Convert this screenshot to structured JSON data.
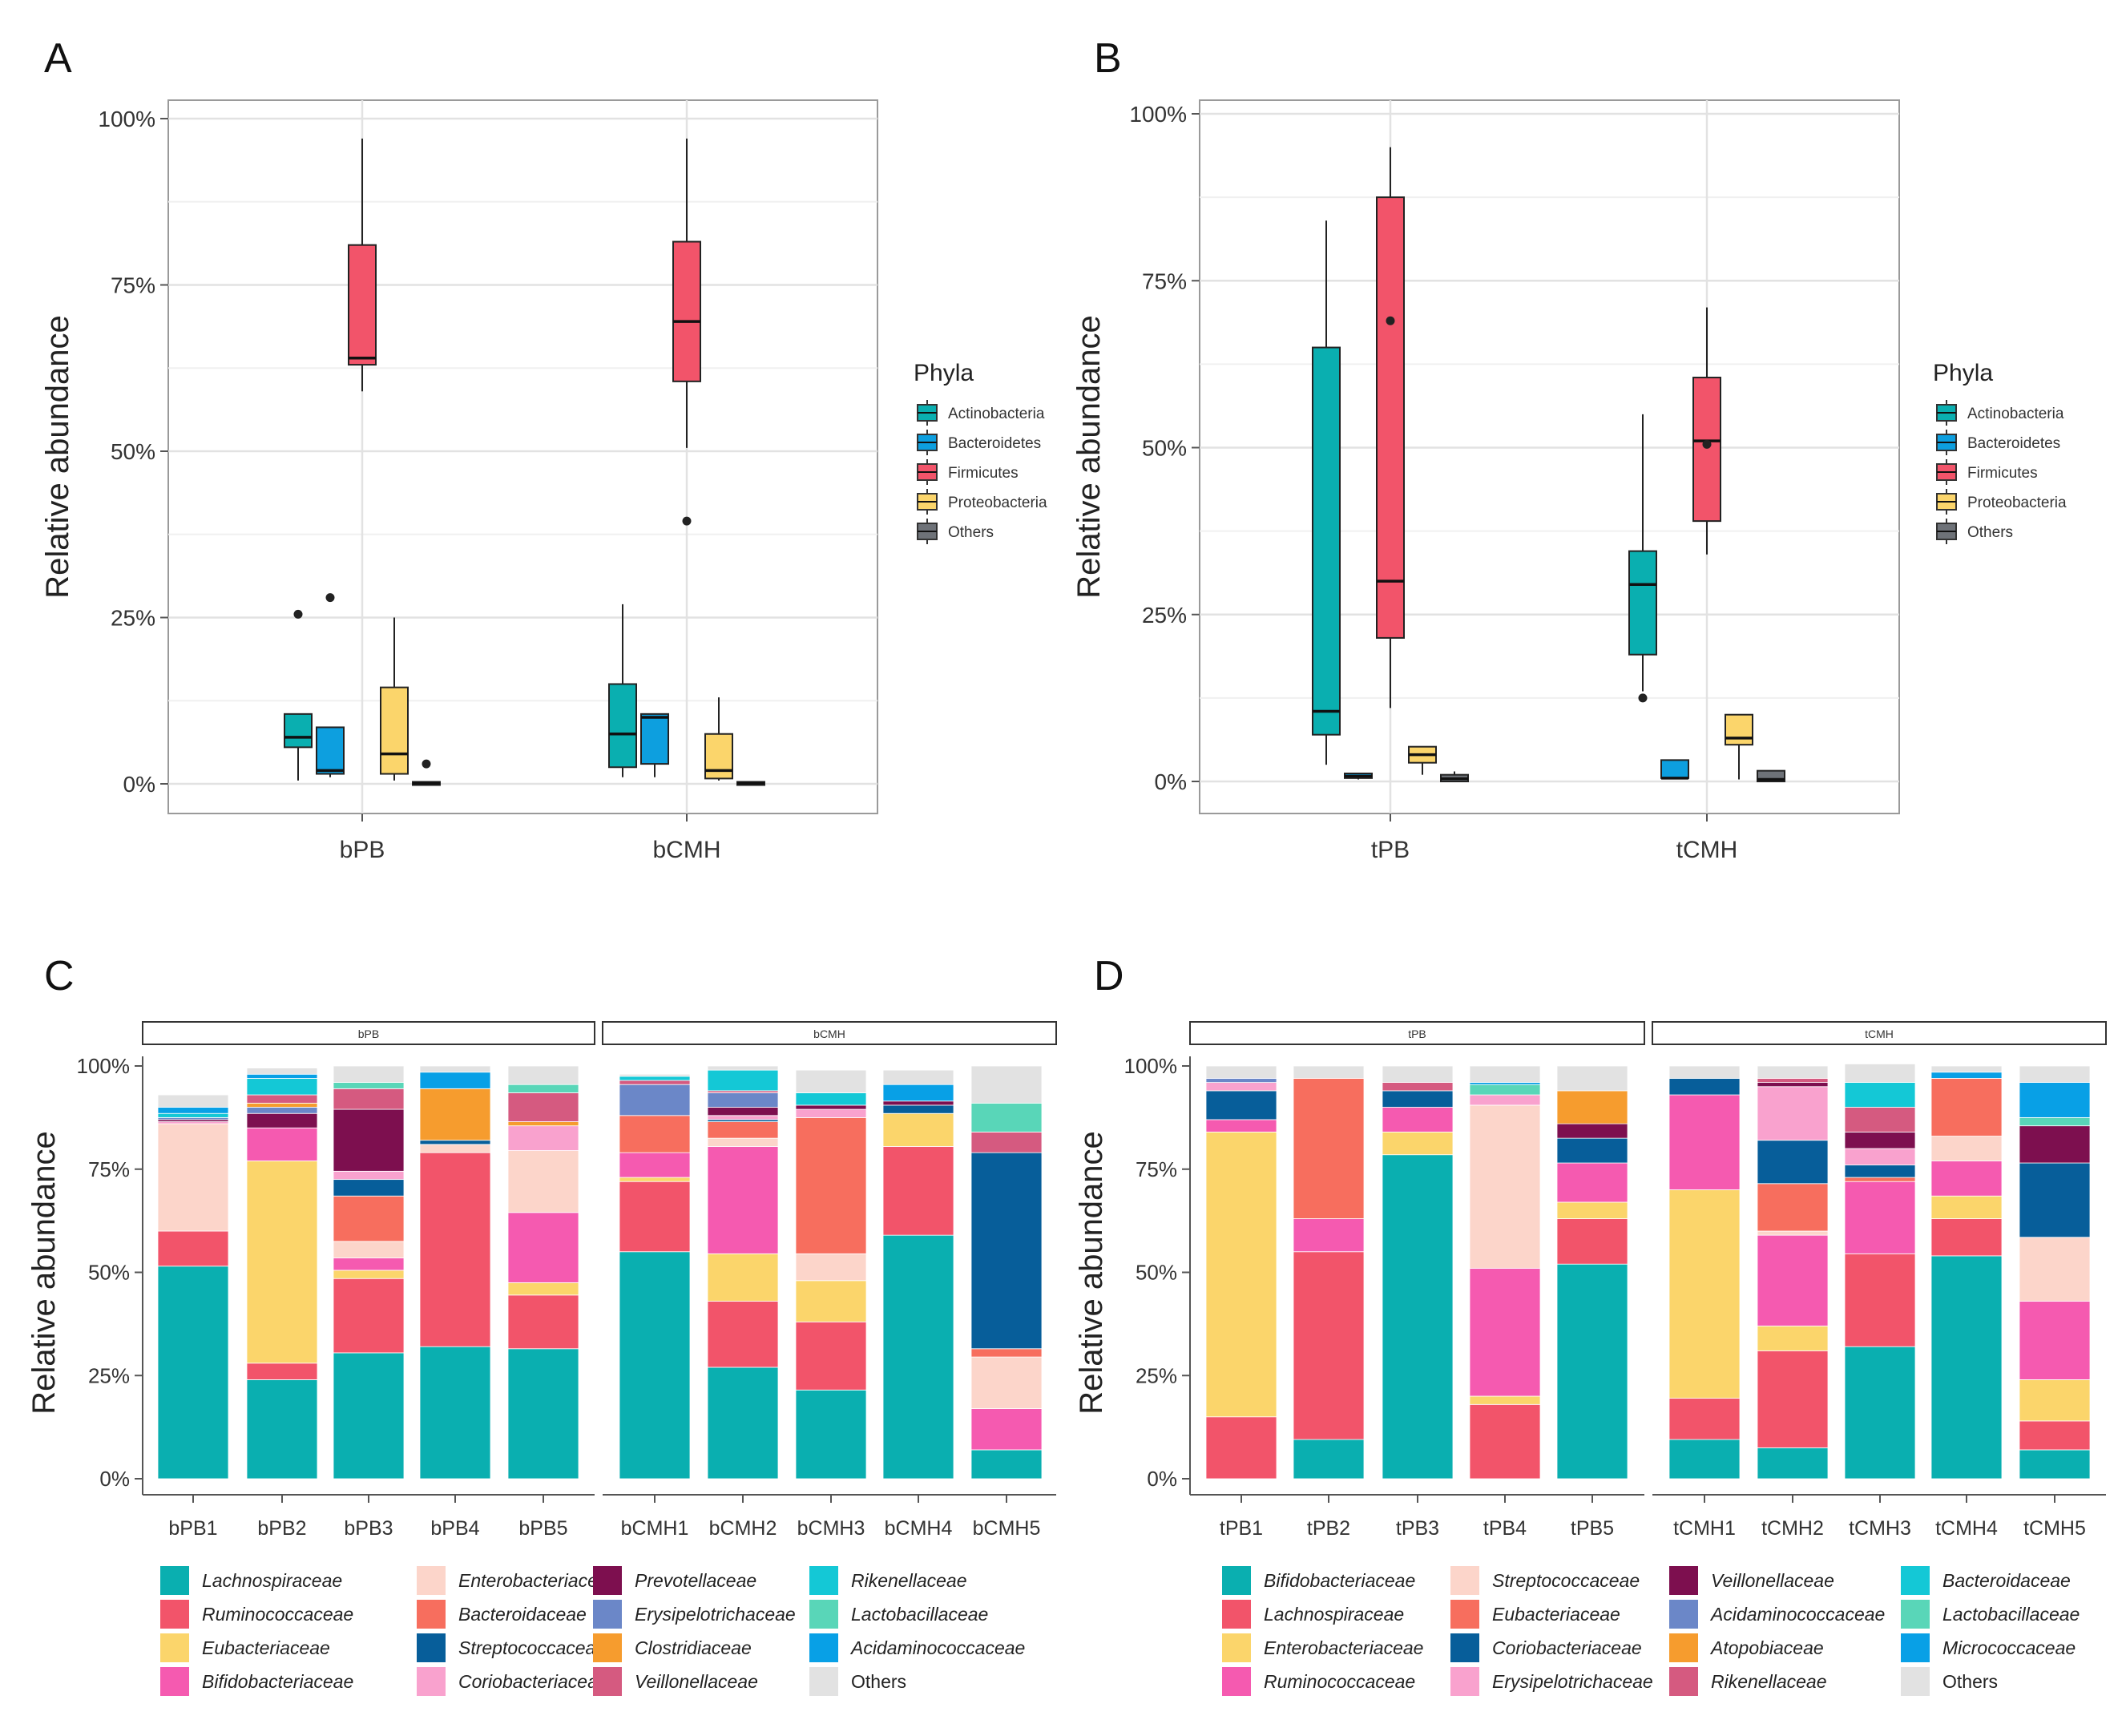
{
  "colors": {
    "Actinobacteria": "#0aafb0",
    "Bacteroidetes": "#0d9fdf",
    "Firmicutes": "#f2546a",
    "Proteobacteria": "#fbd56b",
    "Others": "#6e7278"
  },
  "chart_data": [
    {
      "panel": "A",
      "type": "box",
      "ylabel": "Relative abundance",
      "yticks": [
        "0%",
        "25%",
        "50%",
        "75%",
        "100%"
      ],
      "ylim": [
        0,
        100
      ],
      "categories": [
        "bPB",
        "bCMH"
      ],
      "legend_title": "Phyla",
      "legend": [
        "Actinobacteria",
        "Bacteroidetes",
        "Firmicutes",
        "Proteobacteria",
        "Others"
      ],
      "series": [
        {
          "name": "Actinobacteria",
          "boxes": [
            {
              "min": 0.5,
              "q1": 5.5,
              "median": 7,
              "q3": 10.5,
              "max": 10.5,
              "outliers": [
                25.5
              ]
            },
            {
              "min": 1,
              "q1": 2.5,
              "median": 7.5,
              "q3": 15,
              "max": 27,
              "outliers": []
            }
          ]
        },
        {
          "name": "Bacteroidetes",
          "boxes": [
            {
              "min": 1,
              "q1": 1.5,
              "median": 2,
              "q3": 8.5,
              "max": 8.5,
              "outliers": [
                28
              ]
            },
            {
              "min": 1,
              "q1": 3,
              "median": 10,
              "q3": 10.5,
              "max": 10.5,
              "outliers": []
            }
          ]
        },
        {
          "name": "Firmicutes",
          "boxes": [
            {
              "min": 59,
              "q1": 63,
              "median": 64,
              "q3": 81,
              "max": 97,
              "outliers": []
            },
            {
              "min": 50.5,
              "q1": 60.5,
              "median": 69.5,
              "q3": 81.5,
              "max": 97,
              "outliers": [
                39.5
              ]
            }
          ]
        },
        {
          "name": "Proteobacteria",
          "boxes": [
            {
              "min": 0.5,
              "q1": 1.5,
              "median": 4.5,
              "q3": 14.5,
              "max": 25,
              "outliers": []
            },
            {
              "min": 0.5,
              "q1": 0.8,
              "median": 2,
              "q3": 7.5,
              "max": 13,
              "outliers": []
            }
          ]
        },
        {
          "name": "Others",
          "boxes": [
            {
              "min": 0,
              "q1": 0,
              "median": 0.1,
              "q3": 0.3,
              "max": 0.3,
              "outliers": [
                3
              ]
            },
            {
              "min": 0,
              "q1": 0,
              "median": 0.1,
              "q3": 0.3,
              "max": 0.3,
              "outliers": []
            }
          ]
        }
      ]
    },
    {
      "panel": "B",
      "type": "box",
      "ylabel": "Relative abundance",
      "yticks": [
        "0%",
        "25%",
        "50%",
        "75%",
        "100%"
      ],
      "ylim": [
        0,
        100
      ],
      "categories": [
        "tPB",
        "tCMH"
      ],
      "legend_title": "Phyla",
      "legend": [
        "Actinobacteria",
        "Bacteroidetes",
        "Firmicutes",
        "Proteobacteria",
        "Others"
      ],
      "series": [
        {
          "name": "Actinobacteria",
          "boxes": [
            {
              "min": 2.5,
              "q1": 7,
              "median": 10.5,
              "q3": 65,
              "max": 84,
              "outliers": []
            },
            {
              "min": 13.5,
              "q1": 19,
              "median": 29.5,
              "q3": 34.5,
              "max": 55,
              "outliers": [
                12.5
              ]
            }
          ]
        },
        {
          "name": "Bacteroidetes",
          "boxes": [
            {
              "min": 0.3,
              "q1": 0.5,
              "median": 0.8,
              "q3": 1.2,
              "max": 1.2,
              "outliers": []
            },
            {
              "min": 0.3,
              "q1": 0.5,
              "median": 0.5,
              "q3": 3.2,
              "max": 3.2,
              "outliers": []
            }
          ]
        },
        {
          "name": "Firmicutes",
          "boxes": [
            {
              "min": 11,
              "q1": 21.5,
              "median": 30,
              "q3": 87.5,
              "max": 95,
              "outliers": [
                69
              ]
            },
            {
              "min": 34,
              "q1": 39,
              "median": 51,
              "q3": 60.5,
              "max": 71,
              "outliers": [
                50.5
              ]
            }
          ]
        },
        {
          "name": "Proteobacteria",
          "boxes": [
            {
              "min": 1,
              "q1": 2.8,
              "median": 4,
              "q3": 5.2,
              "max": 5.2,
              "outliers": []
            },
            {
              "min": 0.3,
              "q1": 5.5,
              "median": 6.5,
              "q3": 10,
              "max": 10,
              "outliers": []
            }
          ]
        },
        {
          "name": "Others",
          "boxes": [
            {
              "min": 0,
              "q1": 0,
              "median": 0.4,
              "q3": 1,
              "max": 1.5,
              "outliers": []
            },
            {
              "min": 0,
              "q1": 0,
              "median": 0.3,
              "q3": 1.6,
              "max": 1.6,
              "outliers": []
            }
          ]
        }
      ]
    },
    {
      "panel": "C",
      "type": "stacked-bar",
      "ylabel": "Relative abundance",
      "yticks": [
        "0%",
        "25%",
        "50%",
        "75%",
        "100%"
      ],
      "facets": [
        {
          "label": "bPB",
          "samples": [
            "bPB1",
            "bPB2",
            "bPB3",
            "bPB4",
            "bPB5"
          ]
        },
        {
          "label": "bCMH",
          "samples": [
            "bCMH1",
            "bCMH2",
            "bCMH3",
            "bCMH4",
            "bCMH5"
          ]
        }
      ],
      "legend": [
        {
          "name": "Lachnospiraceae",
          "color": "#0aafb0"
        },
        {
          "name": "Ruminococcaceae",
          "color": "#f2546a"
        },
        {
          "name": "Eubacteriaceae",
          "color": "#fbd56b"
        },
        {
          "name": "Bifidobacteriaceae",
          "color": "#f55ab0"
        },
        {
          "name": "Enterobacteriaceae",
          "color": "#fcd5ca"
        },
        {
          "name": "Bacteroidaceae",
          "color": "#f76e5e"
        },
        {
          "name": "Streptococcaceae",
          "color": "#075e9a"
        },
        {
          "name": "Coriobacteriaceae",
          "color": "#f9a2ce"
        },
        {
          "name": "Prevotellaceae",
          "color": "#7d0f4f"
        },
        {
          "name": "Erysipelotrichaceae",
          "color": "#6b87c8"
        },
        {
          "name": "Clostridiaceae",
          "color": "#f69c2e"
        },
        {
          "name": "Veillonellaceae",
          "color": "#d55a80"
        },
        {
          "name": "Rikenellaceae",
          "color": "#14c8d6"
        },
        {
          "name": "Lactobacillaceae",
          "color": "#59d6b8"
        },
        {
          "name": "Acidaminococcaceae",
          "color": "#08a0e6"
        },
        {
          "name": "Others",
          "color": "#e2e2e2"
        }
      ],
      "bars": [
        [
          51.5,
          8.5,
          0,
          0,
          26,
          0,
          0,
          0.5,
          0.5,
          0.5,
          0,
          0,
          1,
          0,
          1.5,
          3
        ],
        [
          24,
          4,
          49,
          8,
          0,
          0,
          0,
          0,
          3.5,
          1.5,
          1,
          2,
          4,
          0,
          1,
          1.5
        ],
        [
          30.5,
          18,
          2,
          3,
          4,
          11,
          4,
          2,
          15,
          0,
          0,
          5,
          0,
          1.5,
          0,
          4
        ],
        [
          32,
          47,
          0,
          0,
          2,
          0,
          1,
          0,
          0,
          0,
          12.5,
          0,
          0,
          0,
          4,
          1.5
        ],
        [
          31.5,
          13,
          3,
          17,
          15,
          0,
          0,
          6,
          0,
          0,
          1,
          7,
          0,
          2,
          0,
          4.5
        ],
        [
          55,
          17,
          1,
          6,
          0,
          9,
          0,
          0,
          0,
          7.5,
          0,
          1,
          1,
          0,
          0,
          0.5
        ],
        [
          27,
          16,
          11.5,
          26,
          2,
          4,
          0.5,
          1,
          2,
          3.5,
          0,
          0.5,
          5,
          0,
          0,
          1
        ],
        [
          21.5,
          16.5,
          10,
          0,
          6.5,
          33,
          0,
          2,
          1,
          0,
          0,
          0,
          3,
          0,
          0,
          5.5
        ],
        [
          59,
          21.5,
          8,
          0,
          0,
          0,
          2,
          0,
          1,
          0,
          0,
          0,
          0,
          0,
          4,
          3.5
        ],
        [
          7,
          0,
          0,
          10,
          12.5,
          2,
          47.5,
          0,
          0,
          0,
          0,
          5,
          0,
          7,
          0,
          9
        ]
      ]
    },
    {
      "panel": "D",
      "type": "stacked-bar",
      "ylabel": "Relative abundance",
      "yticks": [
        "0%",
        "25%",
        "50%",
        "75%",
        "100%"
      ],
      "facets": [
        {
          "label": "tPB",
          "samples": [
            "tPB1",
            "tPB2",
            "tPB3",
            "tPB4",
            "tPB5"
          ]
        },
        {
          "label": "tCMH",
          "samples": [
            "tCMH1",
            "tCMH2",
            "tCMH3",
            "tCMH4",
            "tCMH5"
          ]
        }
      ],
      "legend": [
        {
          "name": "Bifidobacteriaceae",
          "color": "#0aafb0"
        },
        {
          "name": "Lachnospiraceae",
          "color": "#f2546a"
        },
        {
          "name": "Enterobacteriaceae",
          "color": "#fbd56b"
        },
        {
          "name": "Ruminococcaceae",
          "color": "#f55ab0"
        },
        {
          "name": "Streptococcaceae",
          "color": "#fcd5ca"
        },
        {
          "name": "Eubacteriaceae",
          "color": "#f76e5e"
        },
        {
          "name": "Coriobacteriaceae",
          "color": "#075e9a"
        },
        {
          "name": "Erysipelotrichaceae",
          "color": "#f9a2ce"
        },
        {
          "name": "Veillonellaceae",
          "color": "#7d0f4f"
        },
        {
          "name": "Acidaminococcaceae",
          "color": "#6b87c8"
        },
        {
          "name": "Atopobiaceae",
          "color": "#f69c2e"
        },
        {
          "name": "Rikenellaceae",
          "color": "#d55a80"
        },
        {
          "name": "Bacteroidaceae",
          "color": "#14c8d6"
        },
        {
          "name": "Lactobacillaceae",
          "color": "#59d6b8"
        },
        {
          "name": "Micrococcaceae",
          "color": "#08a0e6"
        },
        {
          "name": "Others",
          "color": "#e2e2e2"
        }
      ],
      "bars": [
        [
          0,
          15,
          69,
          3,
          0,
          0,
          7,
          2,
          0,
          1,
          0,
          0,
          0,
          0,
          0,
          3
        ],
        [
          9.5,
          45.5,
          0,
          8,
          0,
          34,
          0,
          0,
          0,
          0,
          0,
          0,
          0,
          0,
          0,
          3
        ],
        [
          78.5,
          0,
          5.5,
          6,
          0,
          0,
          4,
          0,
          0,
          0,
          0,
          2,
          0,
          0,
          0,
          4
        ],
        [
          0,
          18,
          2,
          31,
          39.5,
          0,
          0,
          2.5,
          0,
          0,
          0,
          0,
          0,
          2.5,
          0.5,
          4
        ],
        [
          52,
          11,
          4,
          9.5,
          0,
          0,
          6,
          0,
          3.5,
          0,
          8,
          0,
          0,
          0,
          0,
          6
        ],
        [
          9.5,
          10,
          50.5,
          23,
          0,
          0,
          4,
          0,
          0,
          0,
          0,
          0,
          0,
          0,
          0,
          3
        ],
        [
          7.5,
          23.5,
          6,
          22,
          1,
          11.5,
          10.5,
          13,
          1,
          0,
          0,
          1,
          0,
          0,
          0,
          3
        ],
        [
          32,
          22.5,
          0,
          17.5,
          0,
          1,
          3,
          4,
          4,
          0,
          0,
          6,
          6,
          0,
          0,
          4.5
        ],
        [
          54,
          9,
          5.5,
          8.5,
          6,
          14,
          0,
          0,
          0,
          0,
          0,
          0,
          0,
          0,
          1.5,
          1.5
        ],
        [
          7,
          7,
          10,
          19,
          15.5,
          0,
          18,
          0,
          9,
          0,
          0,
          0,
          0,
          2,
          8.5,
          4
        ]
      ]
    }
  ]
}
